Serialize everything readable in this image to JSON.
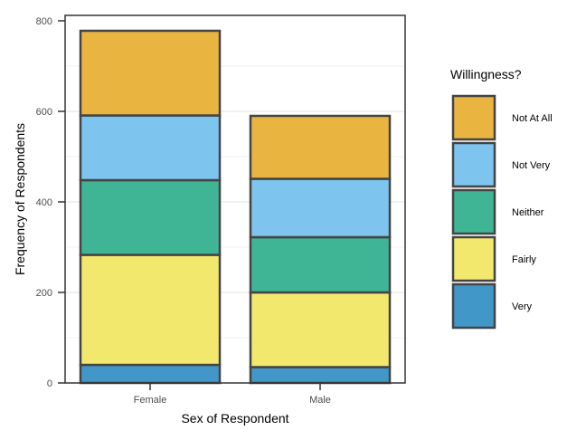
{
  "chart_data": {
    "type": "bar",
    "stacked": true,
    "categories": [
      "Female",
      "Male"
    ],
    "series": [
      {
        "name": "Very",
        "values": [
          40,
          35
        ],
        "color": "#4297c9"
      },
      {
        "name": "Fairly",
        "values": [
          243,
          165
        ],
        "color": "#f2e86e"
      },
      {
        "name": "Neither",
        "values": [
          165,
          122
        ],
        "color": "#3fb595"
      },
      {
        "name": "Not Very",
        "values": [
          143,
          129
        ],
        "color": "#7dc4ee"
      },
      {
        "name": "Not At All",
        "values": [
          187,
          139
        ],
        "color": "#eab441"
      }
    ],
    "xlabel": "Sex of Respondent",
    "ylabel": "Frequency of Respondents",
    "ylim": [
      0,
      800
    ],
    "yticks": [
      0,
      200,
      400,
      600,
      800
    ],
    "grid": true,
    "legend": {
      "title": "Willingness?",
      "placement": "right",
      "order": [
        "Not At All",
        "Not Very",
        "Neither",
        "Fairly",
        "Very"
      ]
    },
    "bar_outline_color": "#444444"
  }
}
